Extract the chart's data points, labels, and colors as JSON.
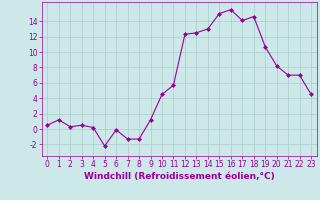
{
  "x": [
    0,
    1,
    2,
    3,
    4,
    5,
    6,
    7,
    8,
    9,
    10,
    11,
    12,
    13,
    14,
    15,
    16,
    17,
    18,
    19,
    20,
    21,
    22,
    23
  ],
  "y": [
    0.5,
    1.2,
    0.3,
    0.5,
    0.2,
    -2.2,
    -0.1,
    -1.3,
    -1.3,
    1.2,
    4.5,
    5.7,
    12.3,
    12.5,
    13.0,
    15.0,
    15.5,
    14.1,
    14.6,
    10.7,
    8.2,
    7.0,
    7.0,
    4.5
  ],
  "line_color": "#990099",
  "marker": "D",
  "marker_size": 2,
  "bg_color": "#cce8e8",
  "grid_color": "#aacccc",
  "xlabel": "Windchill (Refroidissement éolien,°C)",
  "xlabel_color": "#990099",
  "tick_color": "#990099",
  "ylim": [
    -3.5,
    16.5
  ],
  "xlim": [
    -0.5,
    23.5
  ],
  "yticks": [
    -2,
    0,
    2,
    4,
    6,
    8,
    10,
    12,
    14
  ],
  "xticks": [
    0,
    1,
    2,
    3,
    4,
    5,
    6,
    7,
    8,
    9,
    10,
    11,
    12,
    13,
    14,
    15,
    16,
    17,
    18,
    19,
    20,
    21,
    22,
    23
  ],
  "tick_fontsize": 5.5,
  "xlabel_fontsize": 6.5
}
